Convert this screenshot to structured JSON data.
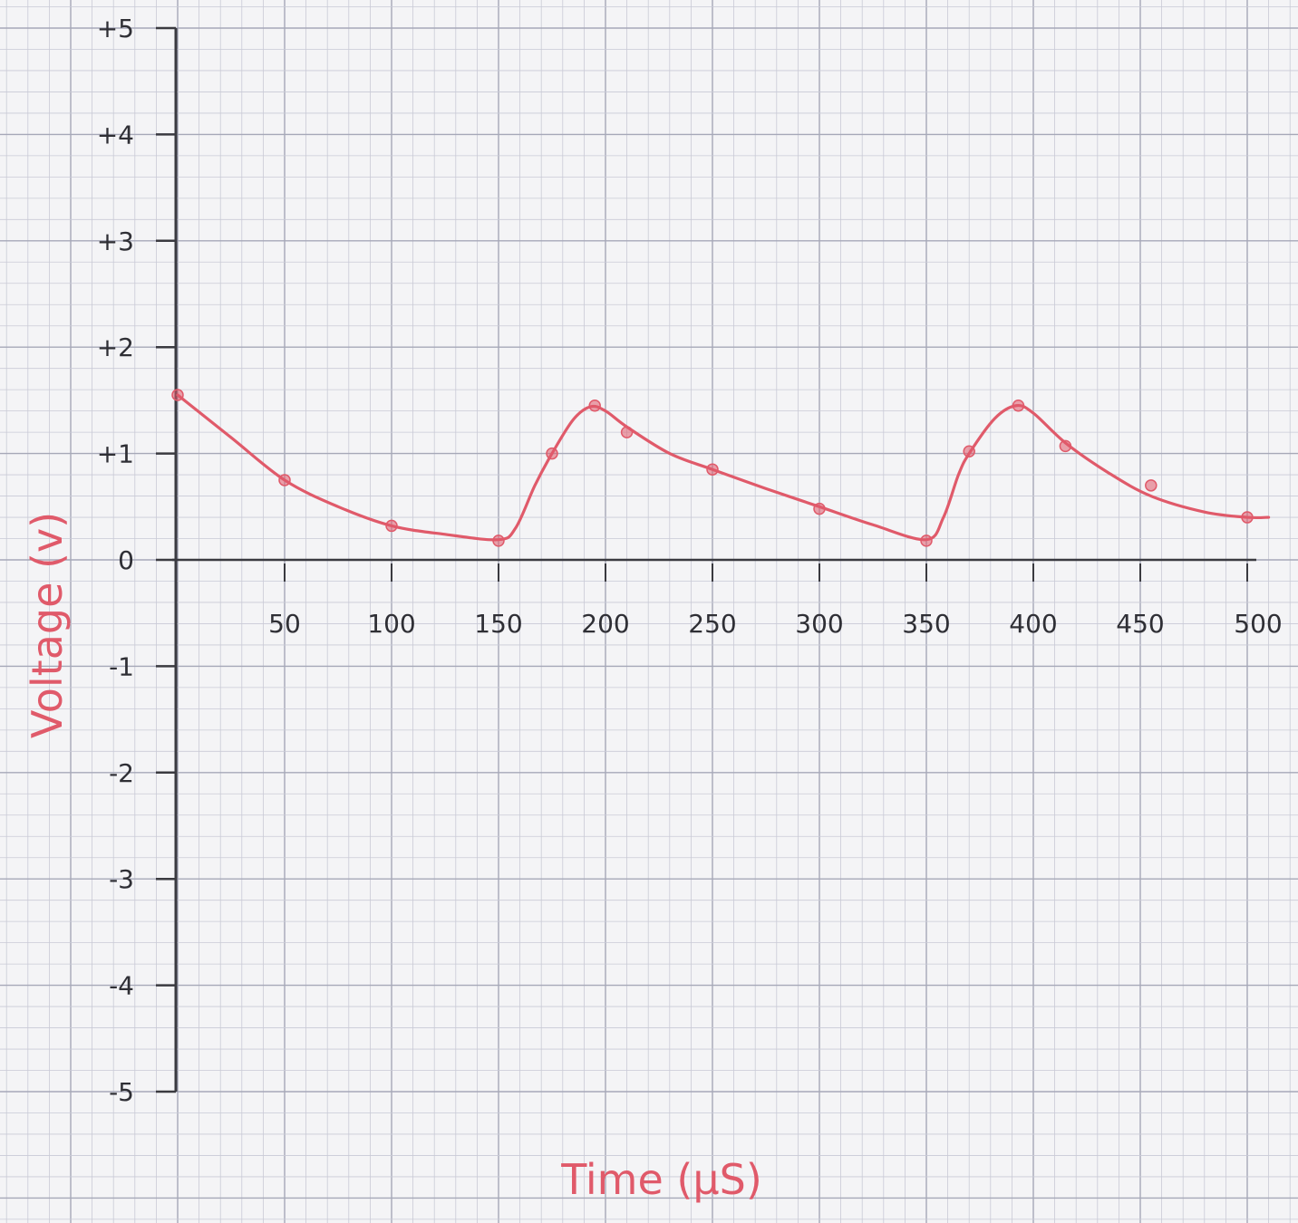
{
  "chart_data": {
    "type": "line",
    "title": "",
    "xlabel": "Time (μS)",
    "ylabel": "Voltage (v)",
    "xlim": [
      0,
      500
    ],
    "ylim": [
      -5,
      5
    ],
    "x_ticks": [
      50,
      100,
      150,
      200,
      250,
      300,
      350,
      400,
      450,
      500
    ],
    "x_tick_labels": [
      "50",
      "100",
      "150",
      "200",
      "250",
      "300",
      "350",
      "400",
      "450",
      "500"
    ],
    "y_ticks": [
      5,
      4,
      3,
      2,
      1,
      0,
      -1,
      -2,
      -3,
      -4,
      -5
    ],
    "y_tick_labels": [
      "+5",
      "+4",
      "+3",
      "+2",
      "+1",
      "0",
      "-1",
      "-2",
      "-3",
      "-4",
      "-5"
    ],
    "grid": true,
    "colors": {
      "line": "#e05a6a",
      "axis": "#3a3a40",
      "grid_minor": "#c9cad6",
      "grid_major": "#a6a8b8",
      "paper": "#f4f4f6"
    },
    "series": [
      {
        "points": [
          {
            "x": 0,
            "y": 1.55
          },
          {
            "x": 50,
            "y": 0.75
          },
          {
            "x": 100,
            "y": 0.32
          },
          {
            "x": 150,
            "y": 0.18
          },
          {
            "x": 175,
            "y": 1.0
          },
          {
            "x": 195,
            "y": 1.45
          },
          {
            "x": 210,
            "y": 1.2
          },
          {
            "x": 250,
            "y": 0.85
          },
          {
            "x": 300,
            "y": 0.48
          },
          {
            "x": 350,
            "y": 0.18
          },
          {
            "x": 370,
            "y": 1.02
          },
          {
            "x": 393,
            "y": 1.45
          },
          {
            "x": 415,
            "y": 1.07
          },
          {
            "x": 455,
            "y": 0.7
          },
          {
            "x": 500,
            "y": 0.4
          }
        ],
        "curve": [
          [
            0,
            1.55
          ],
          [
            25,
            1.15
          ],
          [
            50,
            0.75
          ],
          [
            75,
            0.5
          ],
          [
            100,
            0.32
          ],
          [
            125,
            0.24
          ],
          [
            150,
            0.19
          ],
          [
            158,
            0.3
          ],
          [
            167,
            0.7
          ],
          [
            175,
            1.0
          ],
          [
            185,
            1.32
          ],
          [
            193,
            1.44
          ],
          [
            200,
            1.4
          ],
          [
            210,
            1.25
          ],
          [
            230,
            1.0
          ],
          [
            250,
            0.85
          ],
          [
            275,
            0.67
          ],
          [
            300,
            0.5
          ],
          [
            325,
            0.33
          ],
          [
            350,
            0.19
          ],
          [
            358,
            0.4
          ],
          [
            365,
            0.8
          ],
          [
            370,
            1.0
          ],
          [
            382,
            1.33
          ],
          [
            392,
            1.45
          ],
          [
            400,
            1.38
          ],
          [
            415,
            1.1
          ],
          [
            435,
            0.82
          ],
          [
            455,
            0.6
          ],
          [
            480,
            0.45
          ],
          [
            500,
            0.4
          ],
          [
            510,
            0.4
          ]
        ]
      }
    ]
  }
}
